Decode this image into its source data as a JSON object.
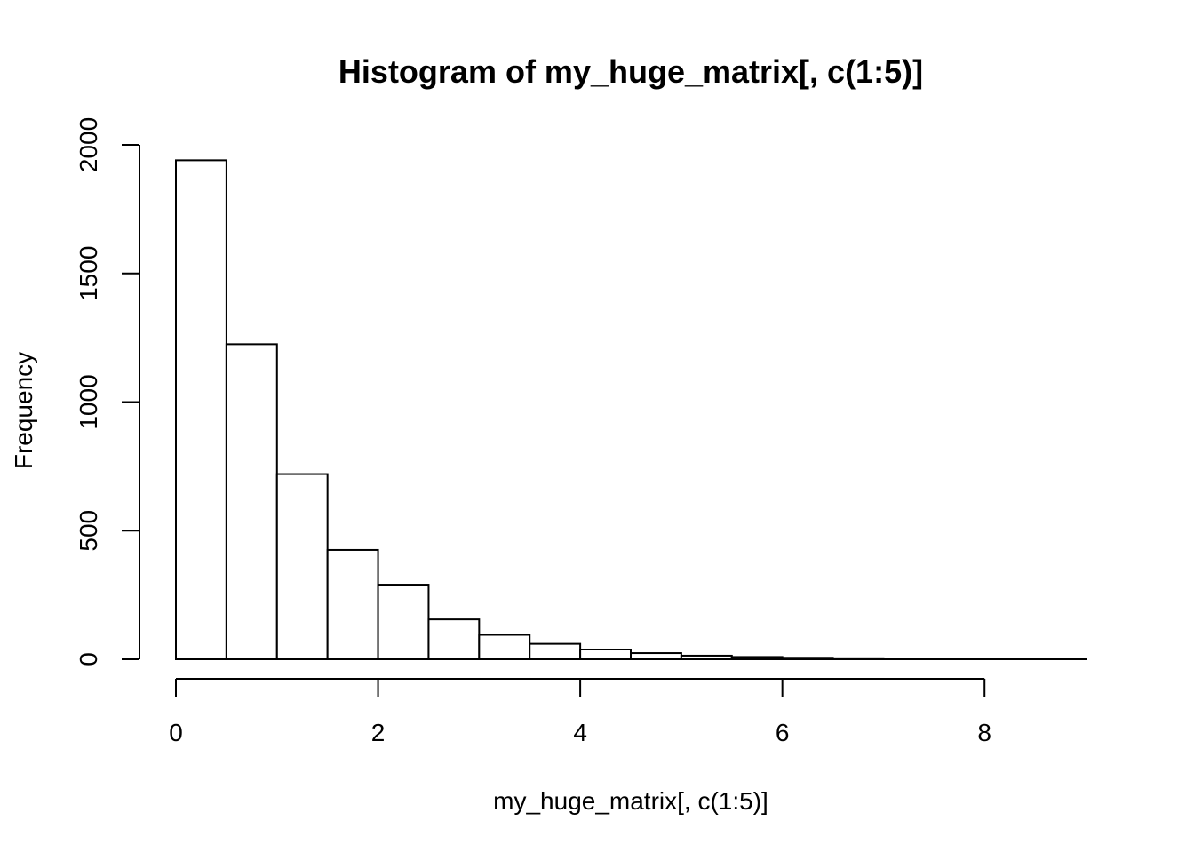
{
  "chart_data": {
    "type": "histogram",
    "title": "Histogram of my_huge_matrix[, c(1:5)]",
    "xlabel": "my_huge_matrix[, c(1:5)]",
    "ylabel": "Frequency",
    "bin_edges": [
      0,
      0.5,
      1,
      1.5,
      2,
      2.5,
      3,
      3.5,
      4,
      4.5,
      5,
      5.5,
      6,
      6.5,
      7,
      7.5,
      8,
      8.5,
      9
    ],
    "values": [
      1940,
      1225,
      720,
      425,
      290,
      155,
      95,
      60,
      38,
      24,
      14,
      9,
      6,
      4,
      3,
      2,
      1,
      1
    ],
    "xlim": [
      0,
      9
    ],
    "ylim": [
      0,
      2000
    ],
    "x_ticks": [
      0,
      2,
      4,
      6,
      8
    ],
    "x_tick_labels": [
      "0",
      "2",
      "4",
      "6",
      "8"
    ],
    "y_ticks": [
      0,
      500,
      1000,
      1500,
      2000
    ],
    "y_tick_labels": [
      "0",
      "500",
      "1000",
      "1500",
      "2000"
    ],
    "grid": false,
    "bar_fill": "#ffffff",
    "bar_stroke": "#000000"
  }
}
